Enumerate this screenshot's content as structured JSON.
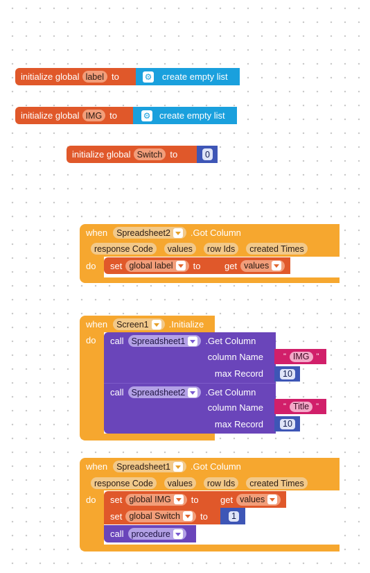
{
  "init_blocks": [
    {
      "prefix": "initialize global",
      "var": "label",
      "to": "to",
      "value": "create empty list",
      "value_icon": "gear-icon"
    },
    {
      "prefix": "initialize global",
      "var": "IMG",
      "to": "to",
      "value": "create empty list",
      "value_icon": "gear-icon"
    },
    {
      "prefix": "initialize global",
      "var": "Switch",
      "to": "to",
      "value": "0"
    }
  ],
  "event1": {
    "when": "when",
    "component": "Spreadsheet2",
    "event": ".Got Column",
    "params": [
      "response Code",
      "values",
      "row Ids",
      "created Times"
    ],
    "do": "do",
    "set": "set",
    "target": "global label",
    "to": "to",
    "get": "get",
    "get_var": "values"
  },
  "event2": {
    "when": "when",
    "component": "Screen1",
    "event": ".Initialize",
    "do": "do",
    "calls": [
      {
        "call": "call",
        "component": "Spreadsheet1",
        "method": ".Get Column",
        "column_label": "column Name",
        "column_value": "IMG",
        "max_label": "max Record",
        "max_value": "10"
      },
      {
        "call": "call",
        "component": "Spreadsheet2",
        "method": ".Get Column",
        "column_label": "column Name",
        "column_value": "Title",
        "max_label": "max Record",
        "max_value": "10"
      }
    ]
  },
  "event3": {
    "when": "when",
    "component": "Spreadsheet1",
    "event": ".Got Column",
    "params": [
      "response Code",
      "values",
      "row Ids",
      "created Times"
    ],
    "do": "do",
    "set1": {
      "set": "set",
      "target": "global IMG",
      "to": "to",
      "get": "get",
      "get_var": "values"
    },
    "set2": {
      "set": "set",
      "target": "global Switch",
      "to": "to",
      "value": "1"
    },
    "call": {
      "call": "call",
      "procedure": "procedure"
    }
  },
  "colors": {
    "variables": "#e0582a",
    "lists": "#1aa0dd",
    "events": "#f6a72f",
    "procedures": "#6a45ba",
    "math": "#3e56b6",
    "text": "#d11f6a"
  }
}
